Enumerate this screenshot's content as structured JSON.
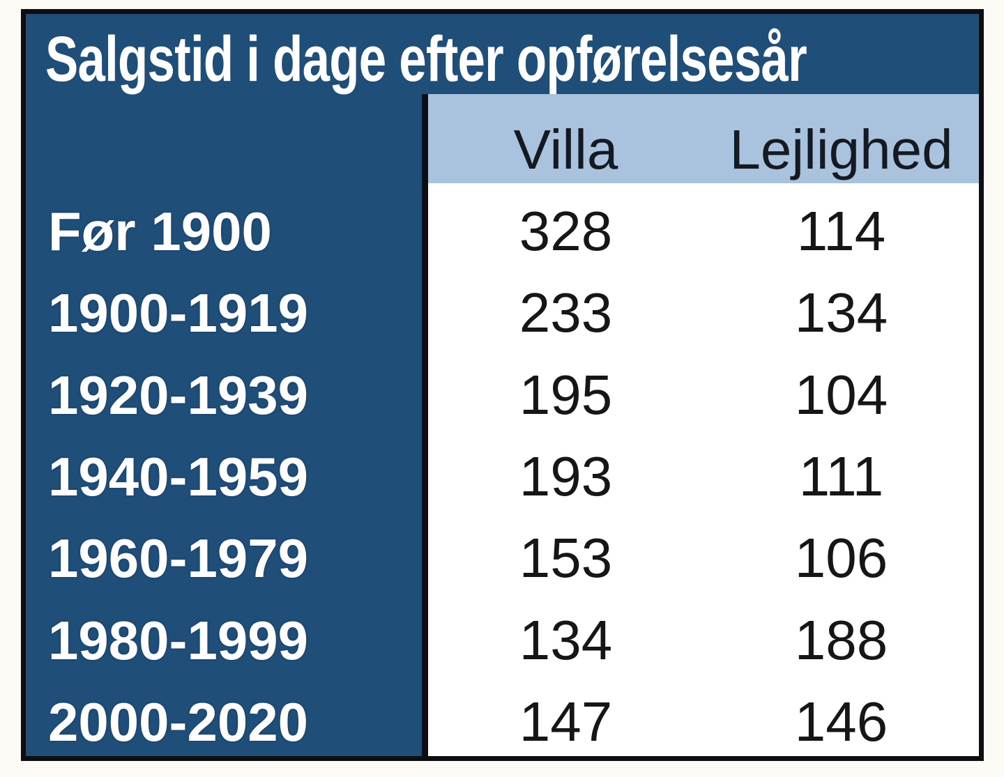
{
  "colors": {
    "table_dark_blue": "#1F4E79",
    "header_light_blue": "#A9C2DD",
    "border_black": "#0D0D12",
    "label_text_white": "#FFFFFF",
    "value_text_black": "#161616",
    "page_background": "#FCFAF5"
  },
  "chart_data": {
    "type": "table",
    "title": "Salgstid i dage efter opførelsesår",
    "columns": [
      "",
      "Villa",
      "Lejlighed"
    ],
    "rows": [
      {
        "label": "Før 1900",
        "villa": 328,
        "lejlighed": 114
      },
      {
        "label": "1900-1919",
        "villa": 233,
        "lejlighed": 134
      },
      {
        "label": "1920-1939",
        "villa": 195,
        "lejlighed": 104
      },
      {
        "label": "1940-1959",
        "villa": 193,
        "lejlighed": 111
      },
      {
        "label": "1960-1979",
        "villa": 153,
        "lejlighed": 106
      },
      {
        "label": "1980-1999",
        "villa": 134,
        "lejlighed": 188
      },
      {
        "label": "2000-2020",
        "villa": 147,
        "lejlighed": 146
      }
    ]
  }
}
